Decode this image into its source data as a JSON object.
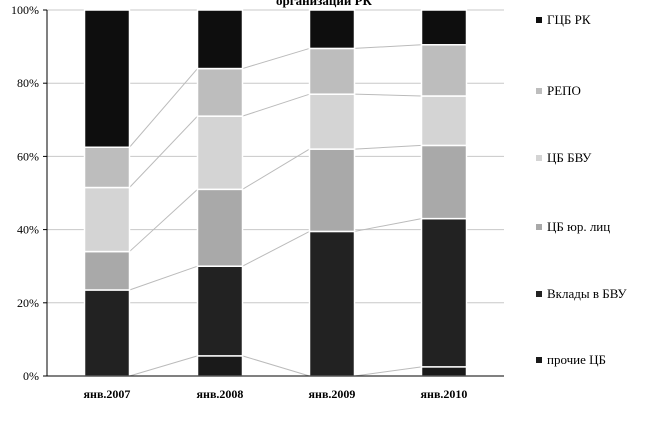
{
  "chart_data": {
    "type": "bar",
    "stacked": true,
    "percent": true,
    "title": "организаций РК",
    "categories": [
      "янв.2007",
      "янв.2008",
      "янв.2009",
      "янв.2010"
    ],
    "series": [
      {
        "name": "прочие ЦБ",
        "color": "#1a1a1a",
        "values": [
          0,
          5.5,
          0,
          2.5
        ]
      },
      {
        "name": "Вклады в БВУ",
        "color": "#222222",
        "values": [
          23.5,
          24.5,
          39.5,
          40.5
        ]
      },
      {
        "name": "ЦБ юр. лиц",
        "color": "#a9a9a9",
        "values": [
          10.5,
          21.0,
          22.5,
          20.0
        ]
      },
      {
        "name": "ЦБ БВУ",
        "color": "#d4d4d4",
        "values": [
          17.5,
          20.0,
          15.0,
          13.5
        ]
      },
      {
        "name": "РЕПО",
        "color": "#bdbdbd",
        "values": [
          11.0,
          13.0,
          12.5,
          14.0
        ]
      },
      {
        "name": "ГЦБ РК",
        "color": "#0e0e0e",
        "values": [
          37.5,
          16.0,
          10.5,
          9.5
        ]
      }
    ],
    "ylim": [
      0,
      100
    ],
    "yticks": [
      "0%",
      "20%",
      "40%",
      "60%",
      "80%",
      "100%"
    ],
    "grid": true,
    "series_lines": true,
    "legend_position": "right"
  }
}
